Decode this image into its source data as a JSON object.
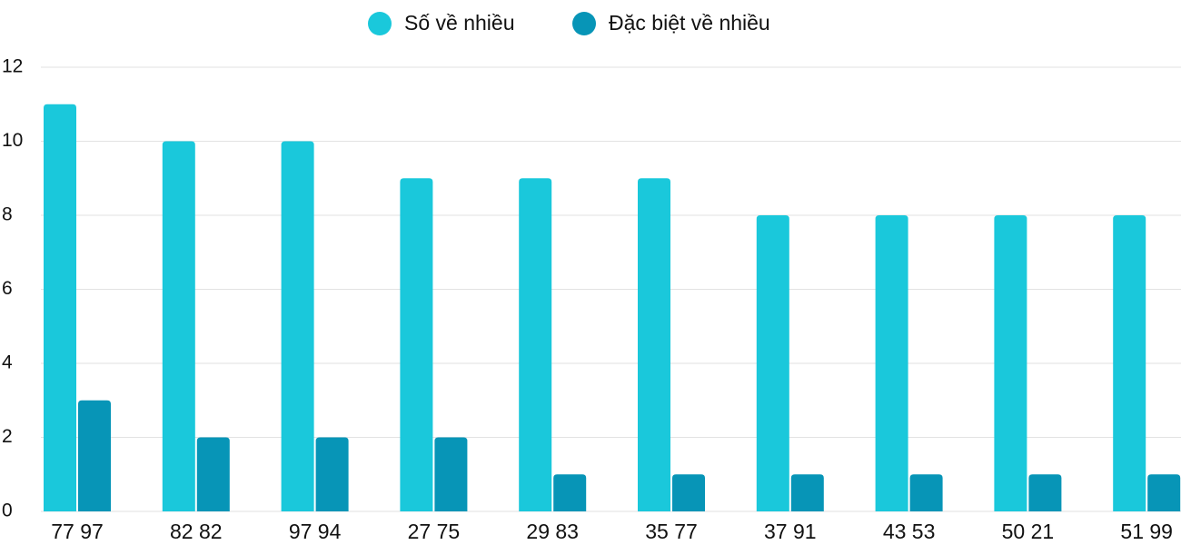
{
  "chart_data": {
    "type": "bar",
    "categories": [
      "77 97",
      "82 82",
      "97 94",
      "27 75",
      "29 83",
      "35 77",
      "37 91",
      "43 53",
      "50 21",
      "51 99"
    ],
    "series": [
      {
        "name": "Số về nhiều",
        "color": "#1ac8db",
        "values": [
          11,
          10,
          10,
          9,
          9,
          9,
          8,
          8,
          8,
          8
        ]
      },
      {
        "name": "Đặc biệt về nhiều",
        "color": "#0795b7",
        "values": [
          3,
          2,
          2,
          2,
          1,
          1,
          1,
          1,
          1,
          1
        ]
      }
    ],
    "ylim": [
      0,
      12
    ],
    "yticks": [
      0,
      2,
      4,
      6,
      8,
      10,
      12
    ],
    "grid": true,
    "legend": "top"
  }
}
